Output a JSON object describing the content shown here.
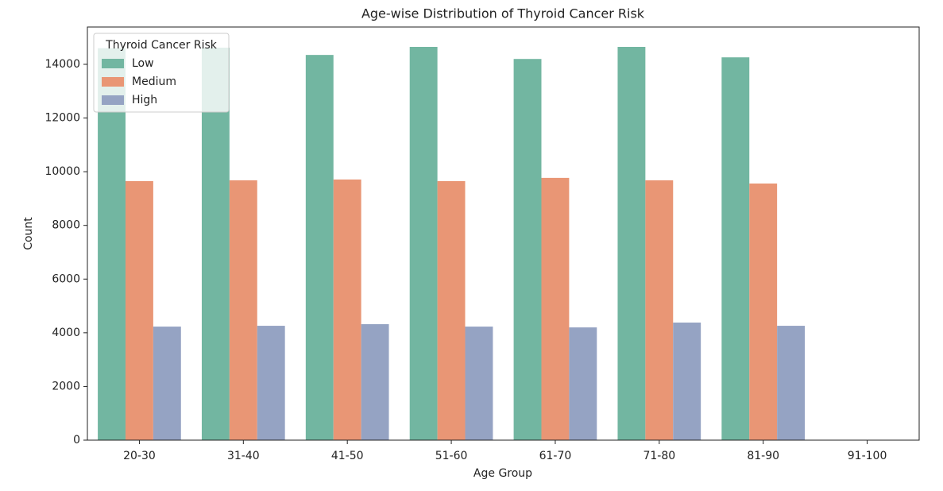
{
  "chart_data": {
    "type": "bar",
    "title": "Age-wise Distribution of Thyroid Cancer Risk",
    "x_label": "Age Group",
    "y_label": "Count",
    "categories": [
      "20-30",
      "31-40",
      "41-50",
      "51-60",
      "61-70",
      "71-80",
      "81-90",
      "91-100"
    ],
    "series": [
      {
        "name": "Low",
        "color": "#72b6a1",
        "values": [
          14600,
          14620,
          14350,
          14650,
          14200,
          14650,
          14260,
          0
        ]
      },
      {
        "name": "Medium",
        "color": "#e99675",
        "values": [
          9650,
          9680,
          9710,
          9650,
          9770,
          9680,
          9560,
          0
        ]
      },
      {
        "name": "High",
        "color": "#95a3c3",
        "values": [
          4230,
          4260,
          4320,
          4230,
          4200,
          4380,
          4260,
          0
        ]
      }
    ],
    "legend_title": "Thyroid Cancer Risk",
    "legend": "upper left",
    "ylim": [
      0,
      15390
    ],
    "yticks": [
      0,
      2000,
      4000,
      6000,
      8000,
      10000,
      12000,
      14000
    ],
    "grid": false
  }
}
